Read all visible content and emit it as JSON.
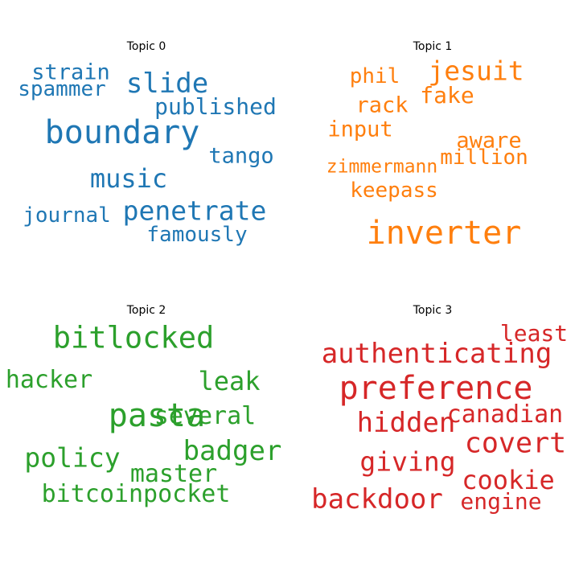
{
  "chart_data": [
    {
      "type": "wordcloud",
      "title": "Topic 0",
      "color": "#1f77b4",
      "words": [
        {
          "text": "boundary",
          "size": 1.0
        },
        {
          "text": "slide",
          "size": 0.86
        },
        {
          "text": "penetrate",
          "size": 0.83
        },
        {
          "text": "music",
          "size": 0.8
        },
        {
          "text": "published",
          "size": 0.7
        },
        {
          "text": "tango",
          "size": 0.68
        },
        {
          "text": "strain",
          "size": 0.68
        },
        {
          "text": "spammer",
          "size": 0.66
        },
        {
          "text": "journal",
          "size": 0.66
        },
        {
          "text": "famously",
          "size": 0.66
        }
      ]
    },
    {
      "type": "wordcloud",
      "title": "Topic 1",
      "color": "#ff7f0e",
      "words": [
        {
          "text": "inverter",
          "size": 1.0
        },
        {
          "text": "jesuit",
          "size": 0.82
        },
        {
          "text": "fake",
          "size": 0.7
        },
        {
          "text": "rack",
          "size": 0.68
        },
        {
          "text": "input",
          "size": 0.68
        },
        {
          "text": "aware",
          "size": 0.68
        },
        {
          "text": "million",
          "size": 0.66
        },
        {
          "text": "keepass",
          "size": 0.66
        },
        {
          "text": "phil",
          "size": 0.66
        },
        {
          "text": "zimmermann",
          "size": 0.58
        }
      ]
    },
    {
      "type": "wordcloud",
      "title": "Topic 2",
      "color": "#2ca02c",
      "words": [
        {
          "text": "pasta",
          "size": 1.0
        },
        {
          "text": "bitlocked",
          "size": 0.92
        },
        {
          "text": "badger",
          "size": 0.86
        },
        {
          "text": "policy",
          "size": 0.82
        },
        {
          "text": "leak",
          "size": 0.8
        },
        {
          "text": "hacker",
          "size": 0.76
        },
        {
          "text": "bitcoinpocket",
          "size": 0.76
        },
        {
          "text": "master",
          "size": 0.74
        },
        {
          "text": "several",
          "size": 0.74
        }
      ]
    },
    {
      "type": "wordcloud",
      "title": "Topic 3",
      "color": "#d62728",
      "words": [
        {
          "text": "preference",
          "size": 1.0
        },
        {
          "text": "covert",
          "size": 0.88
        },
        {
          "text": "authenticating",
          "size": 0.86
        },
        {
          "text": "hidden",
          "size": 0.86
        },
        {
          "text": "backdoor",
          "size": 0.86
        },
        {
          "text": "giving",
          "size": 0.82
        },
        {
          "text": "cookie",
          "size": 0.8
        },
        {
          "text": "canadian",
          "size": 0.76
        },
        {
          "text": "engine",
          "size": 0.7
        },
        {
          "text": "least",
          "size": 0.7
        }
      ]
    }
  ]
}
